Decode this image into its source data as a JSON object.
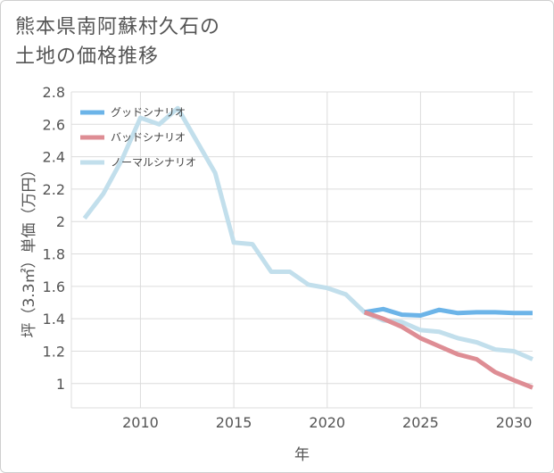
{
  "title_lines": [
    "熊本県南阿蘇村久石の",
    "土地の価格推移"
  ],
  "chart_data": {
    "type": "line",
    "xlabel": "年",
    "ylabel": "坪（3.3㎡）単価（万円）",
    "xlim": [
      2006.3,
      2031
    ],
    "ylim": [
      0.85,
      2.8
    ],
    "x_ticks": [
      2010,
      2015,
      2020,
      2025,
      2030
    ],
    "y_ticks": [
      1,
      1.2,
      1.4,
      1.6,
      1.8,
      2,
      2.2,
      2.4,
      2.6,
      2.8
    ],
    "y_tick_labels": [
      "1",
      "1.2",
      "1.4",
      "1.6",
      "1.8",
      "2",
      "2.2",
      "2.4",
      "2.6",
      "2.8"
    ],
    "grid": true,
    "legend_position": "top-left",
    "series": [
      {
        "name": "グッドシナリオ",
        "color": "#6cb4e8",
        "x": [
          2022,
          2023,
          2024,
          2025,
          2026,
          2027,
          2028,
          2029,
          2030,
          2031
        ],
        "y": [
          1.44,
          1.46,
          1.425,
          1.42,
          1.455,
          1.435,
          1.44,
          1.44,
          1.435,
          1.435
        ]
      },
      {
        "name": "バッドシナリオ",
        "color": "#de8d94",
        "x": [
          2022,
          2023,
          2024,
          2025,
          2026,
          2027,
          2028,
          2029,
          2030,
          2031
        ],
        "y": [
          1.44,
          1.4,
          1.35,
          1.28,
          1.23,
          1.18,
          1.15,
          1.07,
          1.02,
          0.975
        ]
      },
      {
        "name": "ノーマルシナリオ",
        "color": "#c2dfec",
        "x": [
          2007,
          2008,
          2009,
          2010,
          2011,
          2012,
          2013,
          2014,
          2015,
          2016,
          2017,
          2018,
          2019,
          2020,
          2021,
          2022,
          2023,
          2024,
          2025,
          2026,
          2027,
          2028,
          2029,
          2030,
          2031
        ],
        "y": [
          2.02,
          2.17,
          2.38,
          2.64,
          2.6,
          2.7,
          2.5,
          2.3,
          1.87,
          1.86,
          1.69,
          1.69,
          1.61,
          1.59,
          1.55,
          1.44,
          1.39,
          1.38,
          1.33,
          1.32,
          1.28,
          1.255,
          1.21,
          1.2,
          1.15
        ]
      }
    ]
  }
}
